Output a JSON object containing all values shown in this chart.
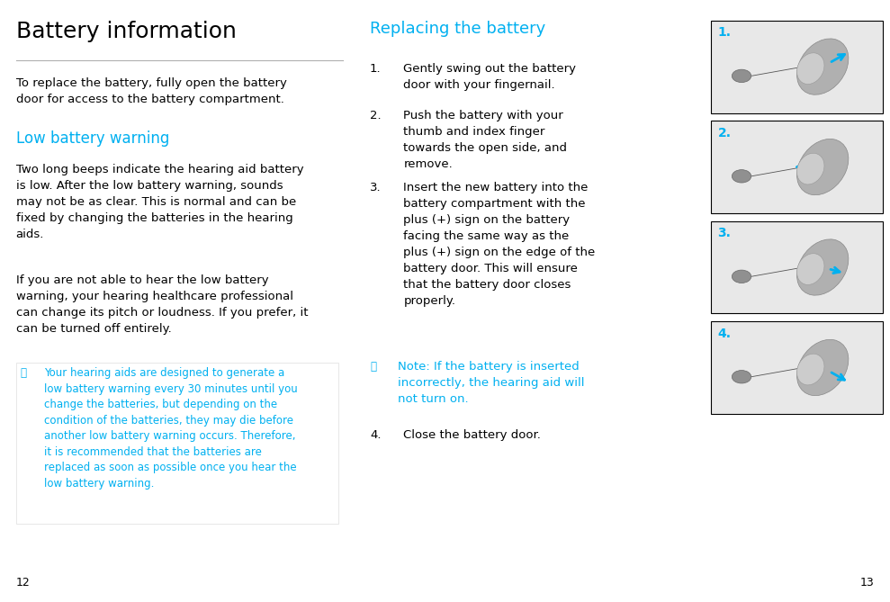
{
  "bg_color": "#ffffff",
  "page_width": 9.89,
  "page_height": 6.69,
  "dpi": 100,
  "title_color": "#000000",
  "heading_color": "#00b0f0",
  "body_color": "#000000",
  "teal_color": "#00b0f0",
  "note_color": "#00b0f0",
  "page_num_color": "#000000",
  "title_fontsize": 18,
  "heading_fontsize": 12,
  "body_fontsize": 9.5,
  "note_fontsize": 8.5,
  "page_num_fontsize": 9,
  "left_title": "Battery information",
  "left_intro": "To replace the battery, fully open the battery\ndoor for access to the battery compartment.",
  "low_battery_heading": "Low battery warning",
  "low_battery_para1": "Two long beeps indicate the hearing aid battery\nis low. After the low battery warning, sounds\nmay not be as clear. This is normal and can be\nfixed by changing the batteries in the hearing\naids.",
  "low_battery_para2": "If you are not able to hear the low battery\nwarning, your hearing healthcare professional\ncan change its pitch or loudness. If you prefer, it\ncan be turned off entirely.",
  "note_para": "Your hearing aids are designed to generate a\nlow battery warning every 30 minutes until you\nchange the batteries, but depending on the\ncondition of the batteries, they may die before\nanother low battery warning occurs. Therefore,\nit is recommended that the batteries are\nreplaced as soon as possible once you hear the\nlow battery warning.",
  "mid_heading": "Replacing the battery",
  "step1": "Gently swing out the battery\ndoor with your fingernail.",
  "step2": "Push the battery with your\nthumb and index finger\ntowards the open side, and\nremove.",
  "step3": "Insert the new battery into the\nbattery compartment with the\nplus (+) sign on the battery\nfacing the same way as the\nplus (+) sign on the edge of the\nbattery door. This will ensure\nthat the battery door closes\nproperly.",
  "note_step": "Note: If the battery is inserted\nincorrectly, the hearing aid will\nnot turn on.",
  "step4": "Close the battery door.",
  "page_left": "12",
  "page_right": "13",
  "line_color": "#b0b0b0",
  "box_border_color": "#cccccc"
}
